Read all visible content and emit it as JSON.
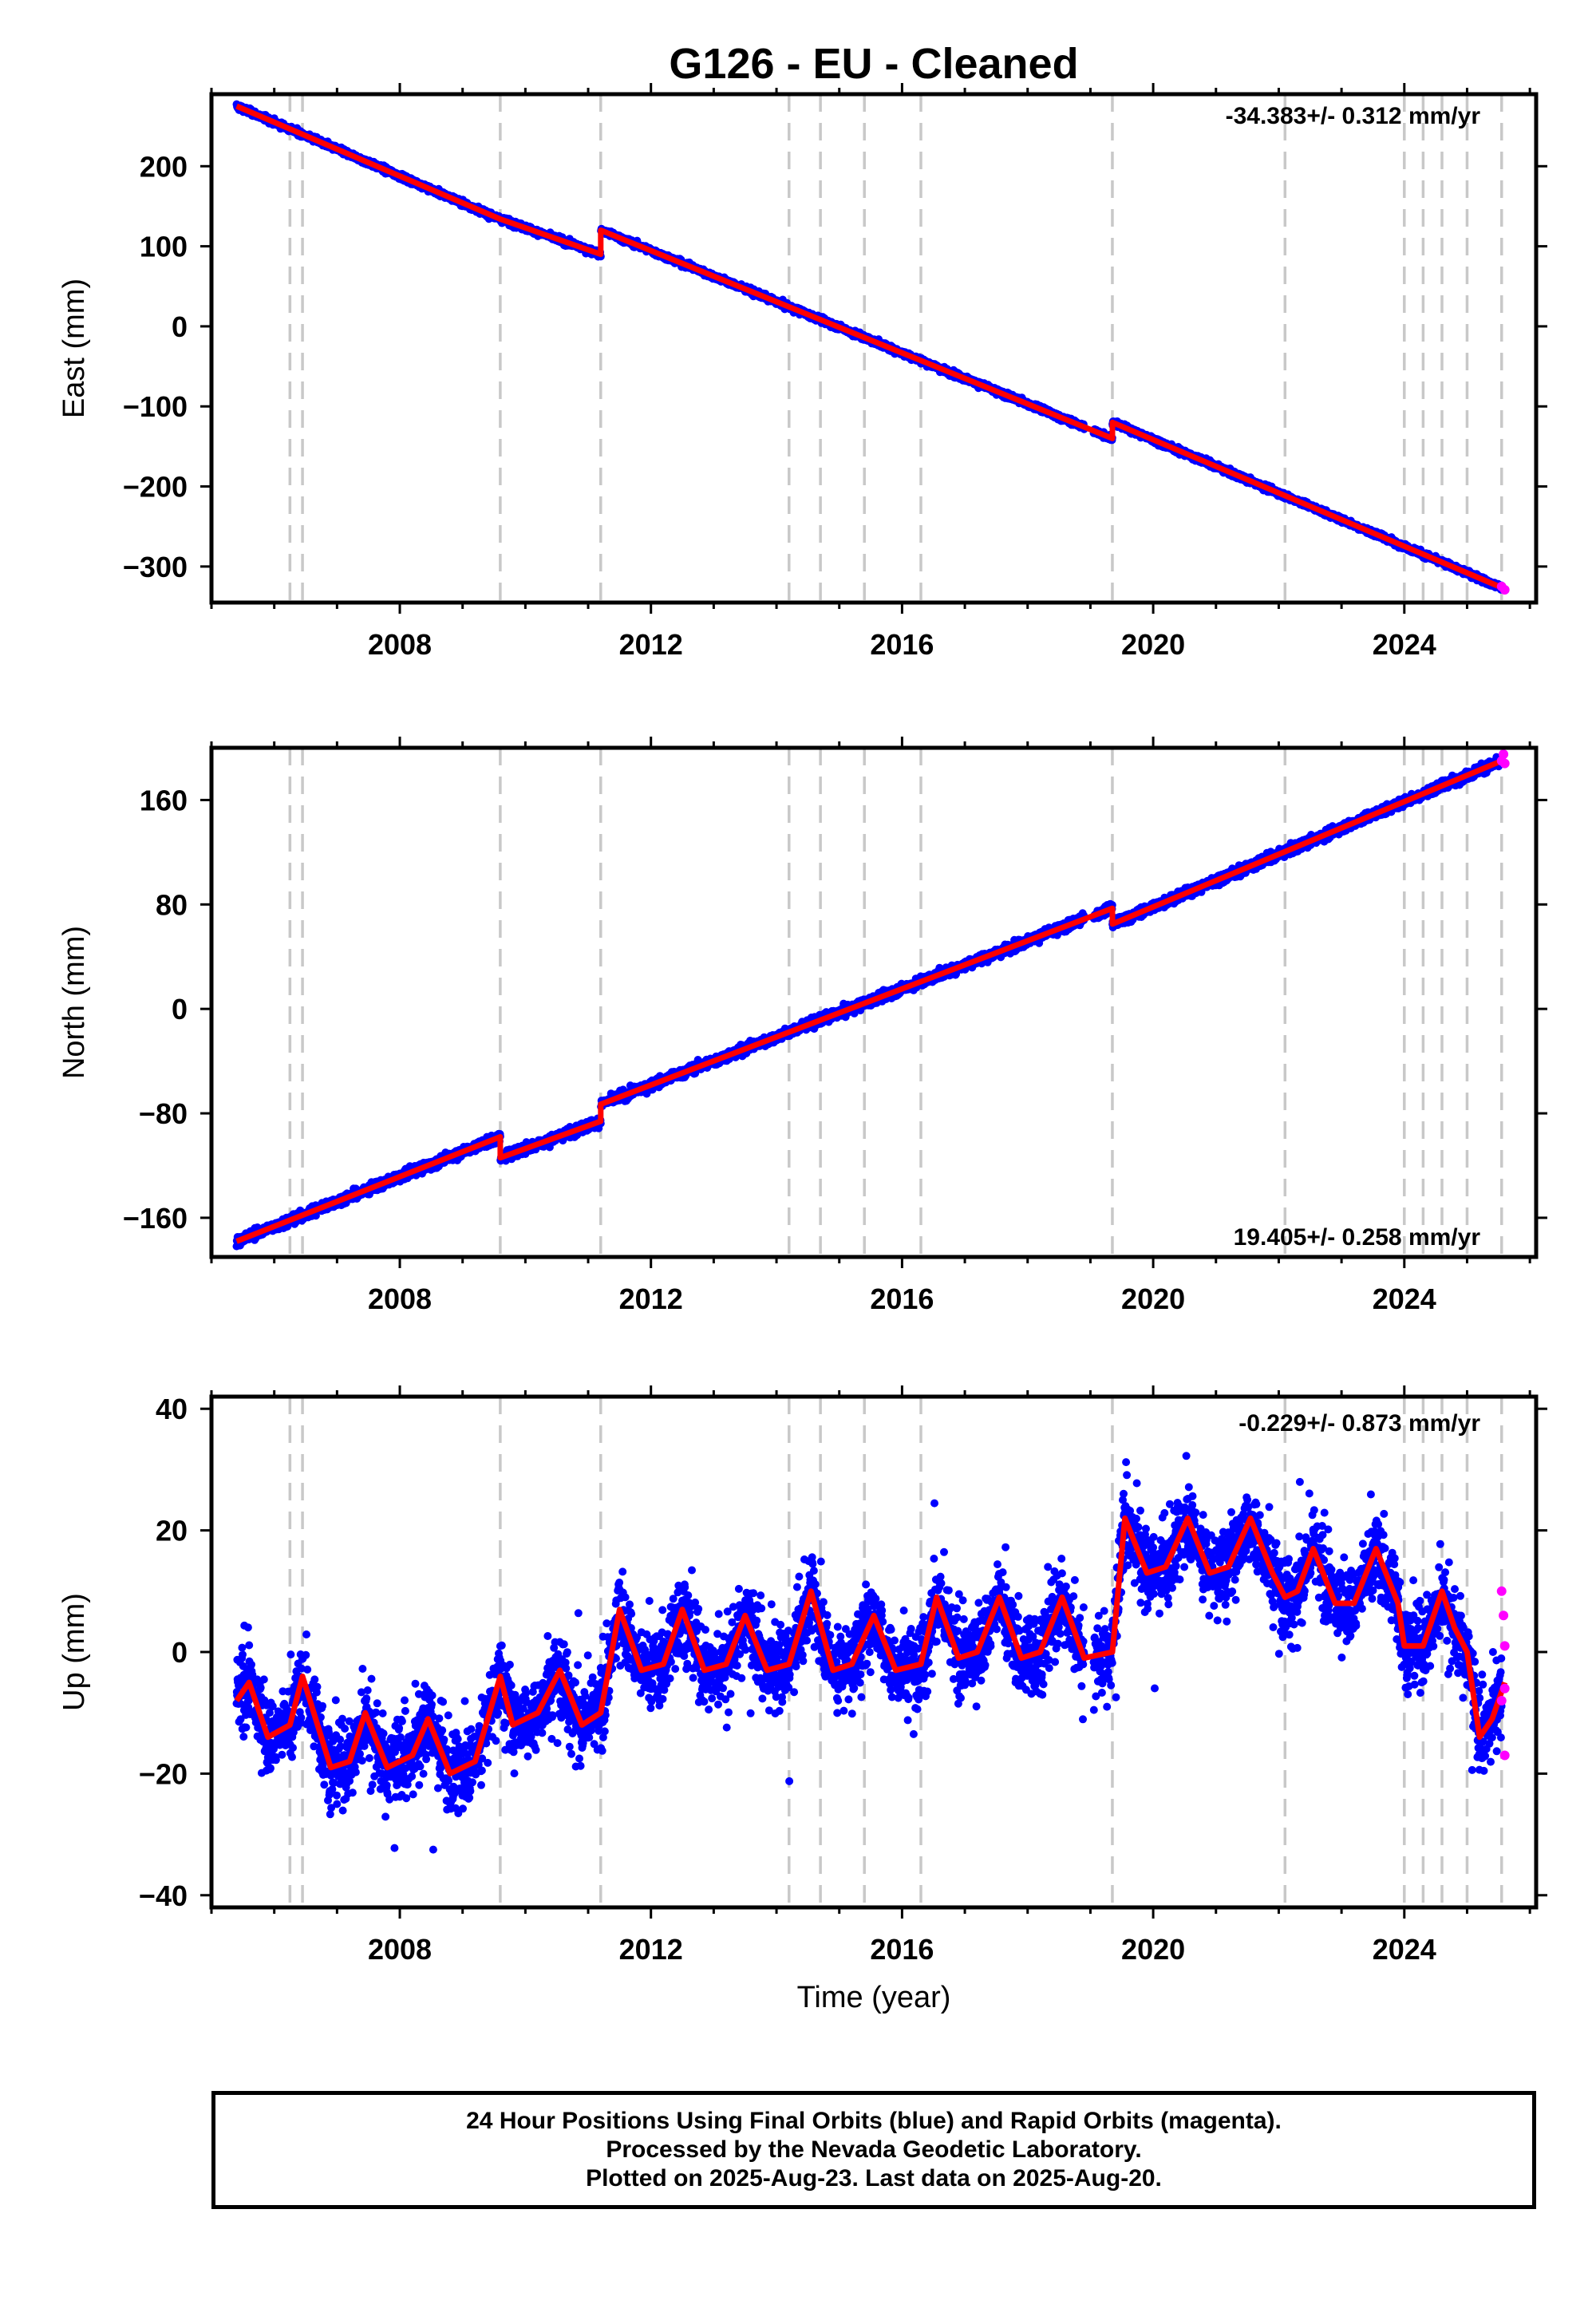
{
  "title": "G126  - EU - Cleaned",
  "x_axis_label": "Time (year)",
  "colors": {
    "final": "#0000ff",
    "rapid": "#ff00ff",
    "model": "#ff0000",
    "events": "#c8c8c8"
  },
  "footer": {
    "line1": "24 Hour Positions Using Final Orbits (blue) and Rapid Orbits (magenta).",
    "line2": "Processed by the Nevada Geodetic Laboratory.",
    "line3": "Plotted on 2025-Aug-23. Last data on 2025-Aug-20."
  },
  "chart_data": [
    {
      "type": "scatter",
      "component": "East",
      "ylabel": "East (mm)",
      "rate_label": "-34.383+/- 0.312 mm/yr",
      "xlim": [
        2005.0,
        2026.1
      ],
      "ylim": [
        -345,
        290
      ],
      "xticks": [
        2008,
        2012,
        2016,
        2020,
        2024
      ],
      "yticks": [
        -300,
        -200,
        -100,
        0,
        100,
        200
      ],
      "event_lines": [
        2006.25,
        2006.45,
        2009.6,
        2011.2,
        2014.2,
        2014.7,
        2015.4,
        2016.3,
        2019.35,
        2022.1,
        2024.0,
        2024.3,
        2024.6,
        2025.0,
        2025.55
      ],
      "trend": {
        "x": [
          2005.4,
          2009.6,
          2009.6,
          2011.2,
          2011.2,
          2019.35,
          2019.35,
          2025.6
        ],
        "y": [
          275,
          134,
          134,
          90,
          120,
          -140,
          -120,
          -328
        ]
      },
      "rapid_points": {
        "x": [
          2025.55,
          2025.6
        ],
        "y": [
          -325,
          -329
        ]
      }
    },
    {
      "type": "scatter",
      "component": "North",
      "ylabel": "North (mm)",
      "rate_label": "19.405+/- 0.258 mm/yr",
      "xlim": [
        2005.0,
        2026.1
      ],
      "ylim": [
        -190,
        200
      ],
      "xticks": [
        2008,
        2012,
        2016,
        2020,
        2024
      ],
      "yticks": [
        -160,
        -80,
        0,
        80,
        160
      ],
      "event_lines": [
        2006.25,
        2006.45,
        2009.6,
        2011.2,
        2014.2,
        2014.7,
        2015.4,
        2016.3,
        2019.35,
        2022.1,
        2024.0,
        2024.3,
        2024.6,
        2025.0,
        2025.55
      ],
      "trend": {
        "x": [
          2005.4,
          2009.6,
          2009.6,
          2011.2,
          2011.2,
          2019.35,
          2019.35,
          2025.6
        ],
        "y": [
          -178,
          -98,
          -114,
          -86,
          -73,
          77,
          65,
          191
        ]
      },
      "rapid_points": {
        "x": [
          2025.55,
          2025.58,
          2025.6
        ],
        "y": [
          190,
          195,
          188
        ]
      }
    },
    {
      "type": "scatter",
      "component": "Up",
      "ylabel": "Up (mm)",
      "rate_label": "-0.229+/- 0.873 mm/yr",
      "xlim": [
        2005.0,
        2026.1
      ],
      "ylim": [
        -42,
        42
      ],
      "xticks": [
        2008,
        2012,
        2016,
        2020,
        2024
      ],
      "yticks": [
        -40,
        -20,
        0,
        20,
        40
      ],
      "event_lines": [
        2006.25,
        2006.45,
        2009.6,
        2011.2,
        2014.2,
        2014.7,
        2015.4,
        2016.3,
        2019.35,
        2022.1,
        2024.0,
        2024.3,
        2024.6,
        2025.0,
        2025.55
      ],
      "trend": {
        "x": [
          2005.4,
          2005.6,
          2005.9,
          2006.25,
          2006.45,
          2006.9,
          2007.2,
          2007.45,
          2007.8,
          2008.2,
          2008.45,
          2008.8,
          2009.2,
          2009.6,
          2009.8,
          2010.2,
          2010.55,
          2010.9,
          2011.2,
          2011.5,
          2011.85,
          2012.2,
          2012.5,
          2012.85,
          2013.2,
          2013.5,
          2013.85,
          2014.2,
          2014.55,
          2014.9,
          2015.2,
          2015.55,
          2015.9,
          2016.3,
          2016.55,
          2016.9,
          2017.2,
          2017.55,
          2017.9,
          2018.2,
          2018.55,
          2018.9,
          2019.35,
          2019.55,
          2019.9,
          2020.2,
          2020.55,
          2020.9,
          2021.2,
          2021.55,
          2021.9,
          2022.1,
          2022.3,
          2022.55,
          2022.9,
          2023.2,
          2023.55,
          2023.9,
          2024.0,
          2024.3,
          2024.6,
          2024.8,
          2025.0,
          2025.2,
          2025.4,
          2025.6
        ],
        "y": [
          -8,
          -5,
          -14,
          -12,
          -4,
          -19,
          -18,
          -10,
          -19,
          -17,
          -11,
          -20,
          -18,
          -4,
          -12,
          -10,
          -3,
          -12,
          -10,
          7,
          -3,
          -2,
          7,
          -3,
          -2,
          6,
          -3,
          -2,
          10,
          -3,
          -2,
          6,
          -3,
          -2,
          9,
          -1,
          0,
          9,
          -1,
          0,
          9,
          -1,
          0,
          22,
          13,
          14,
          22,
          13,
          14,
          22,
          13,
          9,
          10,
          17,
          8,
          8,
          17,
          8,
          1,
          1,
          10,
          4,
          0,
          -14,
          -11,
          -5
        ]
      },
      "rapid_points": {
        "x": [
          2025.55,
          2025.58,
          2025.6,
          2025.6,
          2025.55,
          2025.6
        ],
        "y": [
          10,
          6,
          1,
          -6,
          -8,
          -17
        ]
      }
    }
  ]
}
